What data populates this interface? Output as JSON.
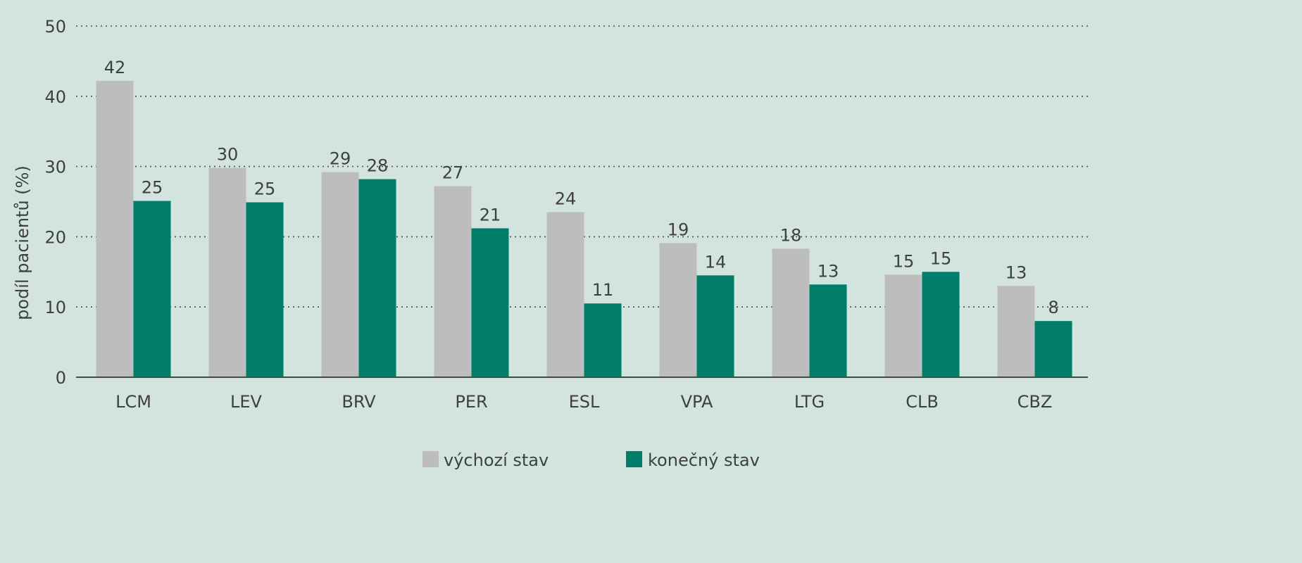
{
  "chart_data": {
    "type": "bar",
    "title": "",
    "xlabel": "",
    "ylabel": "podíl pacientů (%)",
    "ylim": [
      0,
      50
    ],
    "yticks": [
      0,
      10,
      20,
      30,
      40,
      50
    ],
    "grid": true,
    "legend_position": "bottom",
    "categories": [
      "LCM",
      "LEV",
      "BRV",
      "PER",
      "ESL",
      "VPA",
      "LTG",
      "CLB",
      "CBZ"
    ],
    "series": [
      {
        "name": "výchozí stav",
        "color": "#bdbdbd",
        "values": [
          42.2,
          29.8,
          29.2,
          27.2,
          23.5,
          19.1,
          18.3,
          14.6,
          13.0
        ],
        "labels": [
          "42",
          "30",
          "29",
          "27",
          "24",
          "19",
          "18",
          "15",
          "13"
        ]
      },
      {
        "name": "konečný stav",
        "color": "#007e6a",
        "values": [
          25.1,
          24.9,
          28.2,
          21.2,
          10.5,
          14.5,
          13.2,
          15.0,
          8.0
        ],
        "labels": [
          "25",
          "25",
          "28",
          "21",
          "11",
          "14",
          "13",
          "15",
          "8"
        ]
      }
    ]
  }
}
